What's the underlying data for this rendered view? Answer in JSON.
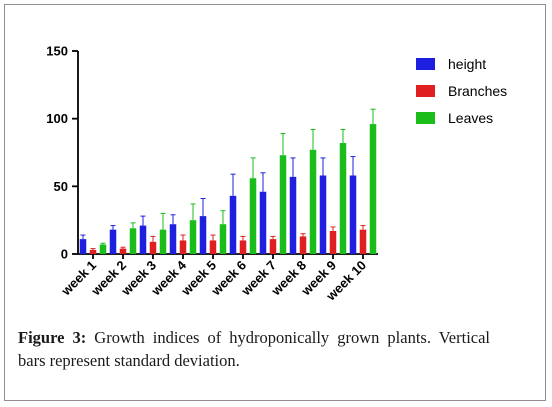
{
  "chart_data": {
    "type": "bar",
    "categories": [
      "week 1",
      "week 2",
      "week 3",
      "week 4",
      "week 5",
      "week 6",
      "week 7",
      "week 8",
      "week 9",
      "week 10"
    ],
    "series": [
      {
        "name": "height",
        "color": "#1f1fe0",
        "values": [
          11,
          18,
          21,
          22,
          28,
          43,
          46,
          57,
          58,
          58
        ],
        "errors": [
          3,
          3,
          7,
          7,
          13,
          16,
          14,
          14,
          13,
          14
        ]
      },
      {
        "name": "Branches",
        "color": "#e02020",
        "values": [
          3,
          4,
          9,
          10,
          10,
          10,
          11,
          13,
          17,
          18
        ],
        "errors": [
          1,
          1,
          4,
          4,
          4,
          3,
          2,
          2,
          3,
          3
        ]
      },
      {
        "name": "Leaves",
        "color": "#1bbd1b",
        "values": [
          7,
          19,
          18,
          25,
          22,
          56,
          73,
          77,
          82,
          96
        ],
        "errors": [
          1,
          4,
          12,
          12,
          10,
          15,
          16,
          15,
          10,
          11
        ]
      }
    ],
    "ylim": [
      0,
      150
    ],
    "yticks": [
      0,
      50,
      100,
      150
    ],
    "legend_position": "right",
    "grid": false,
    "error_bars": "standard deviation"
  },
  "caption": {
    "label": "Figure 3:",
    "text": "Growth indices of hydroponically grown plants. Vertical bars represent standard deviation."
  }
}
